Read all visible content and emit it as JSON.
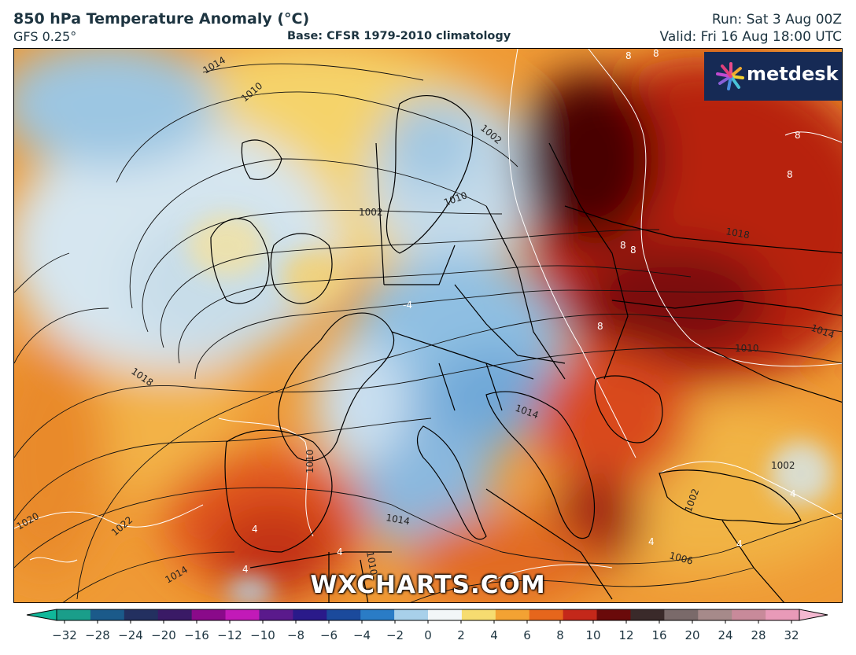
{
  "header": {
    "title": "850 hPa Temperature Anomaly (°C)",
    "model": "GFS 0.25°",
    "base": "Base: CFSR 1979-2010 climatology",
    "run": "Run: Sat 3 Aug 00Z",
    "valid": "Valid: Fri 16 Aug 18:00 UTC"
  },
  "logo": {
    "text": "metdesk",
    "icon": "pinwheel-logo-icon"
  },
  "watermark": "WXCHARTS.COM",
  "map": {
    "region": "Europe",
    "pressure_labels": [
      "1014",
      "1010",
      "1002",
      "1002",
      "1018",
      "1014",
      "1010",
      "1018",
      "1022",
      "1020",
      "1014",
      "1010",
      "1014",
      "1006",
      "1002",
      "1002",
      "1014",
      "1010",
      "1010"
    ],
    "temp_labels": [
      "8",
      "8",
      "8",
      "8",
      "8",
      "8",
      "8",
      "-4",
      "4",
      "4",
      "4",
      "4",
      "4",
      "4"
    ]
  },
  "colorbar": {
    "ticks": [
      "−32",
      "−28",
      "−24",
      "−20",
      "−16",
      "−12",
      "−10",
      "−8",
      "−6",
      "−4",
      "−2",
      "0",
      "2",
      "4",
      "6",
      "8",
      "10",
      "12",
      "16",
      "20",
      "24",
      "28",
      "32"
    ],
    "colors": [
      "#1a9e8a",
      "#1b5a8a",
      "#233060",
      "#3a1a66",
      "#8a0a8a",
      "#c21ab8",
      "#5a1a8c",
      "#2a1a8a",
      "#1b4a9c",
      "#2a7cc6",
      "#a8d0ea",
      "#f2f6f8",
      "#f6dc70",
      "#f3a233",
      "#e6661c",
      "#c4281a",
      "#6a0a0a",
      "#3a2a2a",
      "#7a6a6a",
      "#a68a8a",
      "#c88a9a",
      "#e89ab8"
    ],
    "colors_meaning": "cold anomalies teal/blue/purple, warm anomalies yellow/orange/red/dark-red/pink"
  }
}
